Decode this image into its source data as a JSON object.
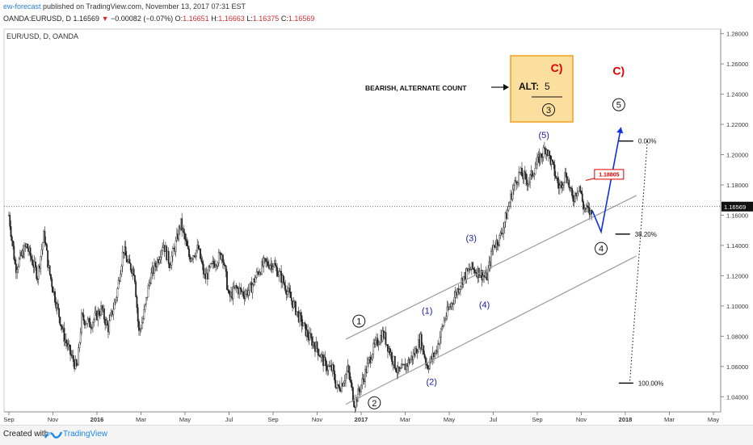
{
  "header": {
    "author": "ew-forecast",
    "published_text": "published on TradingView.com, November 13, 2017 07:31 EST",
    "symbol": "OANDA:EURUSD, D",
    "last": "1.16569",
    "change": "−0.00082 (−0.07%)",
    "o_label": "O:",
    "o_value": "1.16651",
    "h_label": "H:",
    "h_value": "1.16663",
    "l_label": "L:",
    "l_value": "1.16375",
    "c_label": "C:",
    "c_value": "1.16569"
  },
  "footer": {
    "created_with": "Created with",
    "brand": "TradingView"
  },
  "chart_data": {
    "type": "line",
    "subtype": "candlestick",
    "title": "EUR/USD, D, OANDA",
    "ylim": [
      1.03,
      1.283
    ],
    "y_ticks": [
      1.04,
      1.06,
      1.08,
      1.1,
      1.12,
      1.14,
      1.16,
      1.18,
      1.2,
      1.22,
      1.24,
      1.26,
      1.28
    ],
    "y_tick_labels": [
      "1.04000",
      "1.06000",
      "1.08000",
      "1.10000",
      "1.12000",
      "1.14000",
      "1.16000",
      "1.18000",
      "1.20000",
      "1.22000",
      "1.24000",
      "1.26000",
      "1.28000"
    ],
    "x_tick_labels": [
      "Sep",
      "Nov",
      "2016",
      "Mar",
      "May",
      "Jul",
      "Sep",
      "Nov",
      "2017",
      "Mar",
      "May",
      "Jul",
      "Sep",
      "Nov",
      "2018",
      "Mar",
      "May"
    ],
    "x_ticks_month_index": [
      0,
      2,
      4,
      6,
      8,
      10,
      12,
      14,
      16,
      18,
      20,
      22,
      24,
      26,
      28,
      30,
      32
    ],
    "current_price": 1.16569,
    "current_price_label": "1.16569",
    "price_path": [
      [
        0.0,
        1.16
      ],
      [
        0.3,
        1.125
      ],
      [
        0.8,
        1.14
      ],
      [
        1.3,
        1.12
      ],
      [
        1.6,
        1.148
      ],
      [
        1.8,
        1.125
      ],
      [
        2.1,
        1.105
      ],
      [
        2.5,
        1.08
      ],
      [
        2.8,
        1.068
      ],
      [
        3.1,
        1.058
      ],
      [
        3.3,
        1.092
      ],
      [
        3.7,
        1.088
      ],
      [
        4.2,
        1.098
      ],
      [
        4.5,
        1.085
      ],
      [
        4.9,
        1.108
      ],
      [
        5.2,
        1.138
      ],
      [
        5.4,
        1.128
      ],
      [
        5.7,
        1.123
      ],
      [
        5.9,
        1.082
      ],
      [
        6.1,
        1.092
      ],
      [
        6.4,
        1.118
      ],
      [
        6.8,
        1.132
      ],
      [
        7.0,
        1.142
      ],
      [
        7.3,
        1.128
      ],
      [
        7.6,
        1.142
      ],
      [
        7.8,
        1.155
      ],
      [
        8.2,
        1.132
      ],
      [
        8.6,
        1.138
      ],
      [
        8.9,
        1.118
      ],
      [
        9.3,
        1.128
      ],
      [
        9.7,
        1.135
      ],
      [
        10.0,
        1.105
      ],
      [
        10.3,
        1.112
      ],
      [
        10.7,
        1.108
      ],
      [
        11.0,
        1.112
      ],
      [
        11.3,
        1.122
      ],
      [
        11.6,
        1.128
      ],
      [
        12.0,
        1.128
      ],
      [
        12.4,
        1.118
      ],
      [
        12.8,
        1.105
      ],
      [
        13.2,
        1.092
      ],
      [
        13.6,
        1.08
      ],
      [
        14.0,
        1.072
      ],
      [
        14.4,
        1.06
      ],
      [
        14.7,
        1.058
      ],
      [
        14.9,
        1.045
      ],
      [
        15.1,
        1.048
      ],
      [
        15.4,
        1.058
      ],
      [
        15.7,
        1.035
      ],
      [
        16.1,
        1.052
      ],
      [
        16.5,
        1.07
      ],
      [
        16.8,
        1.078
      ],
      [
        17.0,
        1.082
      ],
      [
        17.3,
        1.07
      ],
      [
        17.7,
        1.055
      ],
      [
        18.0,
        1.06
      ],
      [
        18.4,
        1.068
      ],
      [
        18.7,
        1.078
      ],
      [
        19.0,
        1.06
      ],
      [
        19.4,
        1.07
      ],
      [
        19.8,
        1.092
      ],
      [
        20.2,
        1.105
      ],
      [
        20.6,
        1.118
      ],
      [
        21.0,
        1.125
      ],
      [
        21.4,
        1.122
      ],
      [
        21.7,
        1.118
      ],
      [
        22.0,
        1.14
      ],
      [
        22.3,
        1.145
      ],
      [
        22.6,
        1.16
      ],
      [
        22.9,
        1.178
      ],
      [
        23.2,
        1.188
      ],
      [
        23.6,
        1.182
      ],
      [
        24.0,
        1.195
      ],
      [
        24.4,
        1.205
      ],
      [
        24.7,
        1.192
      ],
      [
        25.0,
        1.178
      ],
      [
        25.3,
        1.188
      ],
      [
        25.6,
        1.17
      ],
      [
        25.9,
        1.18
      ],
      [
        26.1,
        1.165
      ],
      [
        26.3,
        1.163
      ],
      [
        26.5,
        1.16
      ]
    ],
    "channel": [
      {
        "x1": 15.3,
        "y1": 1.078,
        "x2": 28.5,
        "y2": 1.173
      },
      {
        "x1": 15.3,
        "y1": 1.035,
        "x2": 28.5,
        "y2": 1.133
      }
    ],
    "projection": [
      [
        26.5,
        1.163
      ],
      [
        26.9,
        1.149
      ],
      [
        27.8,
        1.218
      ]
    ],
    "fib_levels": [
      {
        "label": "0.00%",
        "value": 1.209
      },
      {
        "label": "38.20%",
        "value": 1.1475
      },
      {
        "label": "100.00%",
        "value": 1.049
      }
    ],
    "fib_dotted_line": [
      [
        29.0,
        1.209
      ],
      [
        28.2,
        1.049
      ]
    ],
    "wave_labels": [
      {
        "text": "1",
        "circled": true,
        "color": "#111111",
        "x": 15.9,
        "y": 1.09
      },
      {
        "text": "2",
        "circled": true,
        "color": "#111111",
        "x": 16.6,
        "y": 1.036
      },
      {
        "text": "(1)",
        "circled": false,
        "color": "#1a1aa6",
        "x": 19.0,
        "y": 1.097
      },
      {
        "text": "(2)",
        "circled": false,
        "color": "#1a1aa6",
        "x": 19.2,
        "y": 1.05
      },
      {
        "text": "(3)",
        "circled": false,
        "color": "#1a1aa6",
        "x": 21.0,
        "y": 1.145
      },
      {
        "text": "(4)",
        "circled": false,
        "color": "#1a1aa6",
        "x": 21.6,
        "y": 1.101
      },
      {
        "text": "(5)",
        "circled": false,
        "color": "#1a1aa6",
        "x": 24.3,
        "y": 1.213
      },
      {
        "text": "4",
        "circled": true,
        "color": "#111111",
        "x": 26.9,
        "y": 1.138
      },
      {
        "text": "5",
        "circled": true,
        "color": "#111111",
        "x": 27.7,
        "y": 1.233
      },
      {
        "text": "C)",
        "circled": false,
        "color": "#e00000",
        "x": 27.7,
        "y": 1.255
      }
    ],
    "callout": {
      "label": "1.18805",
      "value": 1.18805
    },
    "alt_box": {
      "c_label": "C)",
      "alt_label": "ALT:",
      "alt_num": "5",
      "three": "3"
    },
    "annotation_text": "BEARISH, ALTERNATE COUNT"
  }
}
